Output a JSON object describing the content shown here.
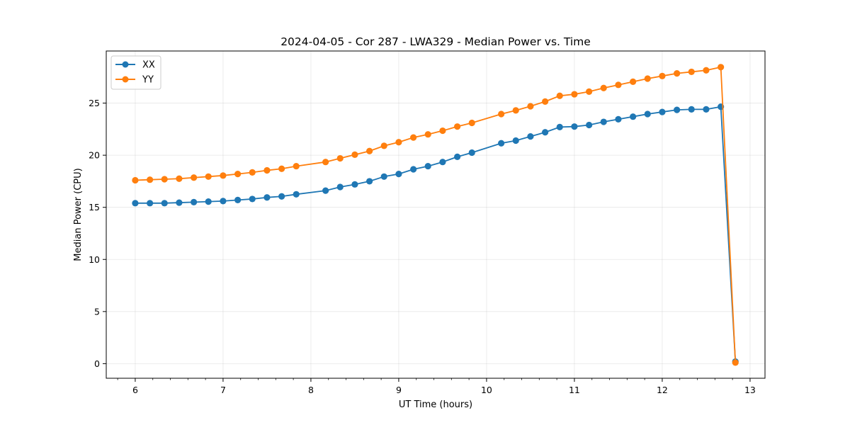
{
  "chart_data": {
    "type": "line",
    "title": "2024-04-05 - Cor 287 - LWA329 - Median Power vs. Time",
    "xlabel": "UT Time (hours)",
    "ylabel": "Median Power (CPU)",
    "xlim": [
      5.67,
      13.17
    ],
    "ylim": [
      -1.4,
      30.0
    ],
    "xticks": [
      6,
      7,
      8,
      9,
      10,
      11,
      12,
      13
    ],
    "xticks_minor_step": 0.2,
    "yticks": [
      0,
      5,
      10,
      15,
      20,
      25
    ],
    "grid": true,
    "legend": "top-left",
    "series": [
      {
        "name": "XX",
        "color": "#1f77b4",
        "x": [
          6.0,
          6.167,
          6.333,
          6.5,
          6.667,
          6.833,
          7.0,
          7.167,
          7.333,
          7.5,
          7.667,
          7.833,
          8.167,
          8.333,
          8.5,
          8.667,
          8.833,
          9.0,
          9.167,
          9.333,
          9.5,
          9.667,
          9.833,
          10.167,
          10.333,
          10.5,
          10.667,
          10.833,
          11.0,
          11.167,
          11.333,
          11.5,
          11.667,
          11.833,
          12.0,
          12.167,
          12.333,
          12.5,
          12.667,
          12.833
        ],
        "y": [
          15.4,
          15.4,
          15.4,
          15.45,
          15.5,
          15.55,
          15.6,
          15.7,
          15.8,
          15.95,
          16.05,
          16.25,
          16.6,
          16.95,
          17.2,
          17.5,
          17.95,
          18.2,
          18.65,
          18.95,
          19.35,
          19.85,
          20.25,
          21.15,
          21.4,
          21.8,
          22.2,
          22.7,
          22.75,
          22.9,
          23.2,
          23.45,
          23.7,
          23.95,
          24.15,
          24.35,
          24.4,
          24.4,
          24.65,
          0.2
        ]
      },
      {
        "name": "YY",
        "color": "#ff7f0e",
        "x": [
          6.0,
          6.167,
          6.333,
          6.5,
          6.667,
          6.833,
          7.0,
          7.167,
          7.333,
          7.5,
          7.667,
          7.833,
          8.167,
          8.333,
          8.5,
          8.667,
          8.833,
          9.0,
          9.167,
          9.333,
          9.5,
          9.667,
          9.833,
          10.167,
          10.333,
          10.5,
          10.667,
          10.833,
          11.0,
          11.167,
          11.333,
          11.5,
          11.667,
          11.833,
          12.0,
          12.167,
          12.333,
          12.5,
          12.667,
          12.833
        ],
        "y": [
          17.6,
          17.65,
          17.7,
          17.75,
          17.85,
          17.95,
          18.05,
          18.2,
          18.35,
          18.55,
          18.7,
          18.95,
          19.35,
          19.7,
          20.05,
          20.4,
          20.9,
          21.25,
          21.7,
          22.0,
          22.35,
          22.75,
          23.1,
          23.95,
          24.3,
          24.7,
          25.15,
          25.7,
          25.85,
          26.1,
          26.45,
          26.75,
          27.05,
          27.35,
          27.6,
          27.85,
          28.0,
          28.15,
          28.45,
          0.1
        ]
      }
    ]
  }
}
